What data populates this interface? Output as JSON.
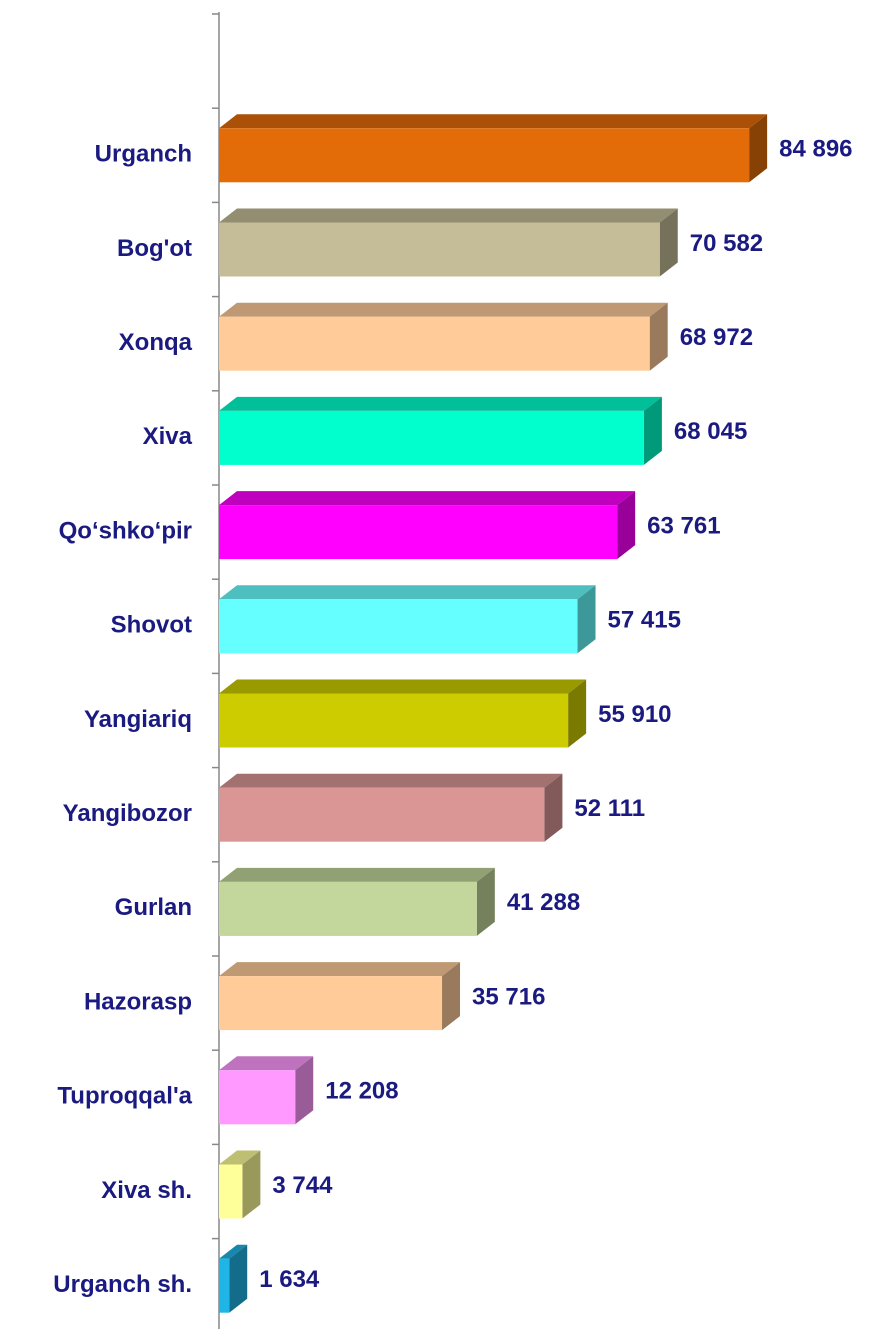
{
  "chart_data": {
    "type": "bar",
    "orientation": "horizontal",
    "categories": [
      "Urganch",
      "Bog'ot",
      "Xonqa",
      "Xiva",
      "Qo‘shko‘pir",
      "Shovot",
      "Yangiariq",
      "Yangibozor",
      "Gurlan",
      "Hazorasp",
      "Tuproqqal'a",
      "Xiva sh.",
      "Urganch sh."
    ],
    "values": [
      84896,
      70582,
      68972,
      68045,
      63761,
      57415,
      55910,
      52111,
      41288,
      35716,
      12208,
      3744,
      1634
    ],
    "value_labels": [
      "84 896",
      "70 582",
      "68 972",
      "68 045",
      "63 761",
      "57 415",
      "55 910",
      "52 111",
      "41 288",
      "35 716",
      "12 208",
      "3 744",
      "1 634"
    ],
    "colors": [
      "#e36c09",
      "#c4bd97",
      "#ffcc99",
      "#00ffcc",
      "#ff00ff",
      "#66ffff",
      "#cccc00",
      "#d99694",
      "#c3d69b",
      "#ffcc99",
      "#ff99ff",
      "#ffff99",
      "#1fb5e6"
    ],
    "xlim": [
      0,
      90000
    ]
  }
}
